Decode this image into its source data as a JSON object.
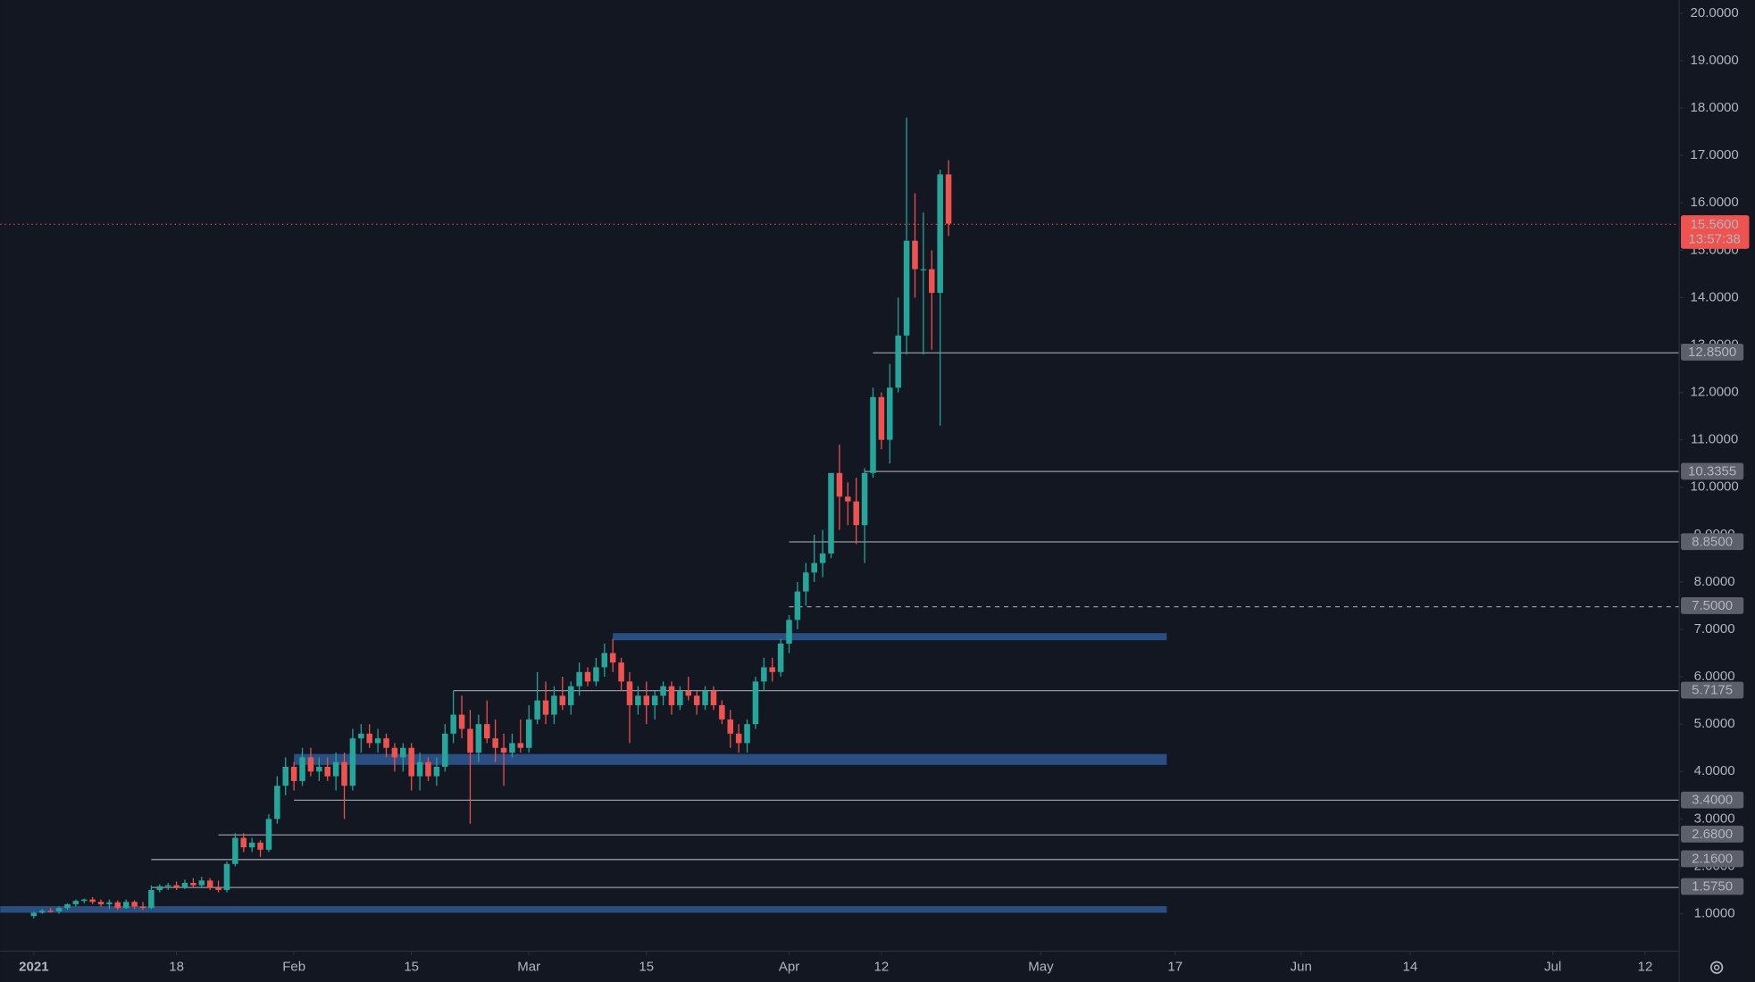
{
  "chart_data": {
    "type": "candlestick",
    "up_color": "#26a69a",
    "down_color": "#ef5350",
    "x": [
      "2021-01-01",
      "2021-01-02",
      "2021-01-03",
      "2021-01-04",
      "2021-01-05",
      "2021-01-06",
      "2021-01-07",
      "2021-01-08",
      "2021-01-09",
      "2021-01-10",
      "2021-01-11",
      "2021-01-12",
      "2021-01-13",
      "2021-01-14",
      "2021-01-15",
      "2021-01-16",
      "2021-01-17",
      "2021-01-18",
      "2021-01-19",
      "2021-01-20",
      "2021-01-21",
      "2021-01-22",
      "2021-01-23",
      "2021-01-24",
      "2021-01-25",
      "2021-01-26",
      "2021-01-27",
      "2021-01-28",
      "2021-01-29",
      "2021-01-30",
      "2021-01-31",
      "2021-02-01",
      "2021-02-02",
      "2021-02-03",
      "2021-02-04",
      "2021-02-05",
      "2021-02-06",
      "2021-02-07",
      "2021-02-08",
      "2021-02-09",
      "2021-02-10",
      "2021-02-11",
      "2021-02-12",
      "2021-02-13",
      "2021-02-14",
      "2021-02-15",
      "2021-02-16",
      "2021-02-17",
      "2021-02-18",
      "2021-02-19",
      "2021-02-20",
      "2021-02-21",
      "2021-02-22",
      "2021-02-23",
      "2021-02-24",
      "2021-02-25",
      "2021-02-26",
      "2021-02-27",
      "2021-02-28",
      "2021-03-01",
      "2021-03-02",
      "2021-03-03",
      "2021-03-04",
      "2021-03-05",
      "2021-03-06",
      "2021-03-07",
      "2021-03-08",
      "2021-03-09",
      "2021-03-10",
      "2021-03-11",
      "2021-03-12",
      "2021-03-13",
      "2021-03-14",
      "2021-03-15",
      "2021-03-16",
      "2021-03-17",
      "2021-03-18",
      "2021-03-19",
      "2021-03-20",
      "2021-03-21",
      "2021-03-22",
      "2021-03-23",
      "2021-03-24",
      "2021-03-25",
      "2021-03-26",
      "2021-03-27",
      "2021-03-28",
      "2021-03-29",
      "2021-03-30",
      "2021-03-31",
      "2021-04-01",
      "2021-04-02",
      "2021-04-03",
      "2021-04-04",
      "2021-04-05",
      "2021-04-06",
      "2021-04-07",
      "2021-04-08",
      "2021-04-09",
      "2021-04-10",
      "2021-04-11",
      "2021-04-12",
      "2021-04-13",
      "2021-04-14",
      "2021-04-15",
      "2021-04-16",
      "2021-04-17",
      "2021-04-18",
      "2021-04-19",
      "2021-04-20"
    ],
    "open": [
      0.95,
      1.02,
      1.06,
      1.05,
      1.12,
      1.2,
      1.27,
      1.3,
      1.25,
      1.2,
      1.24,
      1.12,
      1.25,
      1.15,
      1.12,
      1.5,
      1.58,
      1.6,
      1.55,
      1.65,
      1.6,
      1.7,
      1.55,
      1.5,
      2.05,
      2.6,
      2.4,
      2.5,
      2.35,
      3.0,
      3.7,
      4.1,
      3.8,
      4.3,
      4.0,
      4.1,
      3.9,
      4.2,
      3.7,
      4.7,
      4.8,
      4.6,
      4.7,
      4.5,
      4.3,
      4.5,
      3.9,
      4.2,
      3.9,
      4.1,
      4.8,
      5.2,
      4.9,
      4.4,
      5.0,
      4.7,
      4.5,
      4.4,
      4.6,
      4.5,
      5.1,
      5.5,
      5.2,
      5.6,
      5.4,
      5.8,
      6.1,
      5.9,
      6.2,
      6.5,
      6.3,
      5.9,
      5.4,
      5.6,
      5.4,
      5.6,
      5.8,
      5.4,
      5.7,
      5.6,
      5.4,
      5.7,
      5.4,
      5.1,
      4.8,
      4.6,
      5.0,
      5.9,
      6.2,
      6.1,
      6.7,
      7.2,
      7.8,
      8.2,
      8.4,
      8.6,
      10.3,
      9.8,
      9.7,
      9.2,
      10.3,
      11.9,
      11.0,
      12.1,
      13.2,
      15.2,
      14.6,
      14.6,
      14.1,
      16.6
    ],
    "high": [
      1.05,
      1.1,
      1.12,
      1.15,
      1.22,
      1.3,
      1.32,
      1.35,
      1.3,
      1.3,
      1.28,
      1.3,
      1.28,
      1.25,
      1.6,
      1.62,
      1.65,
      1.68,
      1.72,
      1.75,
      1.78,
      1.75,
      1.7,
      2.1,
      2.7,
      2.7,
      2.6,
      2.55,
      3.1,
      3.9,
      4.3,
      4.2,
      4.5,
      4.5,
      4.3,
      4.3,
      4.4,
      4.4,
      4.9,
      5.0,
      5.0,
      4.9,
      4.8,
      4.6,
      4.6,
      4.6,
      4.4,
      4.3,
      4.3,
      5.0,
      5.7,
      5.6,
      5.3,
      5.2,
      5.5,
      5.1,
      4.8,
      4.8,
      5.1,
      5.4,
      6.1,
      5.9,
      5.8,
      6.0,
      5.9,
      6.3,
      6.2,
      6.4,
      6.7,
      6.8,
      6.4,
      6.1,
      5.8,
      5.9,
      5.7,
      5.9,
      5.9,
      5.8,
      6.0,
      5.7,
      5.8,
      5.8,
      5.5,
      5.3,
      5.0,
      5.1,
      6.0,
      6.4,
      6.4,
      6.8,
      7.3,
      8.0,
      8.4,
      9.0,
      9.1,
      10.3,
      10.9,
      10.1,
      10.2,
      10.4,
      12.1,
      12.0,
      12.6,
      14.0,
      17.8,
      16.2,
      15.8,
      15.0,
      16.7,
      16.9
    ],
    "low": [
      0.9,
      1.0,
      1.02,
      1.0,
      1.08,
      1.15,
      1.22,
      1.2,
      1.15,
      1.1,
      1.08,
      1.1,
      1.1,
      1.08,
      1.1,
      1.45,
      1.5,
      1.5,
      1.52,
      1.55,
      1.55,
      1.5,
      1.45,
      1.45,
      2.0,
      2.3,
      2.3,
      2.2,
      2.3,
      2.9,
      3.5,
      3.6,
      3.7,
      3.9,
      3.8,
      3.8,
      3.6,
      3.0,
      3.6,
      4.4,
      4.5,
      4.4,
      4.3,
      4.0,
      4.0,
      3.6,
      3.6,
      3.8,
      3.7,
      4.0,
      4.6,
      4.7,
      2.9,
      4.2,
      4.6,
      4.2,
      3.7,
      4.3,
      4.4,
      4.4,
      5.0,
      5.0,
      5.0,
      5.3,
      5.2,
      5.6,
      5.8,
      5.8,
      6.0,
      6.1,
      5.7,
      4.6,
      5.2,
      5.0,
      5.1,
      5.4,
      5.2,
      5.3,
      5.5,
      5.2,
      5.3,
      5.3,
      5.0,
      4.5,
      4.4,
      4.4,
      4.9,
      5.7,
      5.9,
      6.0,
      6.5,
      7.0,
      7.5,
      8.0,
      8.1,
      8.5,
      9.1,
      9.2,
      8.8,
      8.4,
      10.2,
      10.8,
      10.5,
      12.0,
      12.8,
      14.0,
      12.8,
      12.9,
      11.3,
      15.3
    ],
    "close": [
      1.02,
      1.06,
      1.05,
      1.12,
      1.2,
      1.27,
      1.3,
      1.25,
      1.2,
      1.24,
      1.12,
      1.25,
      1.15,
      1.12,
      1.5,
      1.58,
      1.6,
      1.55,
      1.65,
      1.6,
      1.7,
      1.55,
      1.5,
      2.05,
      2.6,
      2.4,
      2.5,
      2.35,
      3.0,
      3.7,
      4.1,
      3.8,
      4.3,
      4.0,
      4.1,
      3.9,
      4.2,
      3.7,
      4.7,
      4.8,
      4.6,
      4.7,
      4.5,
      4.3,
      4.5,
      3.9,
      4.2,
      3.9,
      4.1,
      4.8,
      5.2,
      4.9,
      4.4,
      5.0,
      4.7,
      4.5,
      4.4,
      4.6,
      4.5,
      5.1,
      5.5,
      5.2,
      5.6,
      5.4,
      5.8,
      6.1,
      5.9,
      6.2,
      6.5,
      6.3,
      5.9,
      5.4,
      5.6,
      5.4,
      5.6,
      5.8,
      5.4,
      5.7,
      5.6,
      5.4,
      5.7,
      5.4,
      5.1,
      4.8,
      4.6,
      5.0,
      5.9,
      6.2,
      6.1,
      6.7,
      7.2,
      7.8,
      8.2,
      8.4,
      8.6,
      10.3,
      9.8,
      9.7,
      9.2,
      10.3,
      11.9,
      11.0,
      12.1,
      13.2,
      15.2,
      14.6,
      14.6,
      14.1,
      16.6,
      15.56
    ],
    "xlim": [
      "2020-12-28",
      "2021-07-16"
    ],
    "xticks": [
      {
        "value": "2021-01-01",
        "label": "2021"
      },
      {
        "value": "2021-01-18",
        "label": "18"
      },
      {
        "value": "2021-02-01",
        "label": "Feb"
      },
      {
        "value": "2021-02-15",
        "label": "15"
      },
      {
        "value": "2021-03-01",
        "label": "Mar"
      },
      {
        "value": "2021-03-15",
        "label": "15"
      },
      {
        "value": "2021-04-01",
        "label": "Apr"
      },
      {
        "value": "2021-04-12",
        "label": "12"
      },
      {
        "value": "2021-05-01",
        "label": "May"
      },
      {
        "value": "2021-05-17",
        "label": "17"
      },
      {
        "value": "2021-06-01",
        "label": "Jun"
      },
      {
        "value": "2021-06-14",
        "label": "14"
      },
      {
        "value": "2021-07-01",
        "label": "Jul"
      },
      {
        "value": "2021-07-12",
        "label": "12"
      }
    ],
    "ylim": [
      0.22,
      20.28
    ],
    "yticks": [
      {
        "value": 1,
        "label": "1.0000"
      },
      {
        "value": 2,
        "label": "2.0000"
      },
      {
        "value": 3,
        "label": "3.0000"
      },
      {
        "value": 4,
        "label": "4.0000"
      },
      {
        "value": 5,
        "label": "5.0000"
      },
      {
        "value": 6,
        "label": "6.0000"
      },
      {
        "value": 7,
        "label": "7.0000"
      },
      {
        "value": 8,
        "label": "8.0000"
      },
      {
        "value": 9,
        "label": "9.0000"
      },
      {
        "value": 10,
        "label": "10.0000"
      },
      {
        "value": 11,
        "label": "11.0000"
      },
      {
        "value": 12,
        "label": "12.0000"
      },
      {
        "value": 13,
        "label": "13.0000"
      },
      {
        "value": 14,
        "label": "14.0000"
      },
      {
        "value": 15,
        "label": "15.0000"
      },
      {
        "value": 16,
        "label": "16.0000"
      },
      {
        "value": 17,
        "label": "17.0000"
      },
      {
        "value": 18,
        "label": "18.0000"
      },
      {
        "value": 19,
        "label": "19.0000"
      },
      {
        "value": 20,
        "label": "20.0000"
      }
    ],
    "levels": [
      {
        "value": 12.85,
        "label": "12.8500",
        "from": "2021-04-11"
      },
      {
        "value": 10.3355,
        "label": "10.3355",
        "from": "2021-04-10"
      },
      {
        "value": 8.85,
        "label": "8.8500",
        "from": "2021-04-01"
      },
      {
        "value": 7.5,
        "label": "7.5000",
        "from": "2021-04-01",
        "dashed": true
      },
      {
        "value": 5.7175,
        "label": "5.7175",
        "from": "2021-02-20"
      },
      {
        "value": 3.4,
        "label": "3.4000",
        "from": "2021-02-01"
      },
      {
        "value": 2.68,
        "label": "2.6800",
        "from": "2021-01-23"
      },
      {
        "value": 2.16,
        "label": "2.1600",
        "from": "2021-01-15"
      },
      {
        "value": 1.575,
        "label": "1.5750",
        "from": "2021-01-15"
      }
    ],
    "level_color": "#9598a1",
    "zones": [
      {
        "from": "2021-03-11",
        "to": "2021-05-16",
        "low": 6.77,
        "high": 6.92
      },
      {
        "from": "2021-02-01",
        "to": "2021-05-16",
        "low": 4.14,
        "high": 4.37
      },
      {
        "from": "2020-12-28",
        "to": "2021-05-16",
        "low": 1.02,
        "high": 1.16
      }
    ],
    "zone_color": "#2a4e82",
    "last_price": {
      "value": 15.56,
      "label": "15.5600",
      "countdown": "13:57:38"
    }
  }
}
